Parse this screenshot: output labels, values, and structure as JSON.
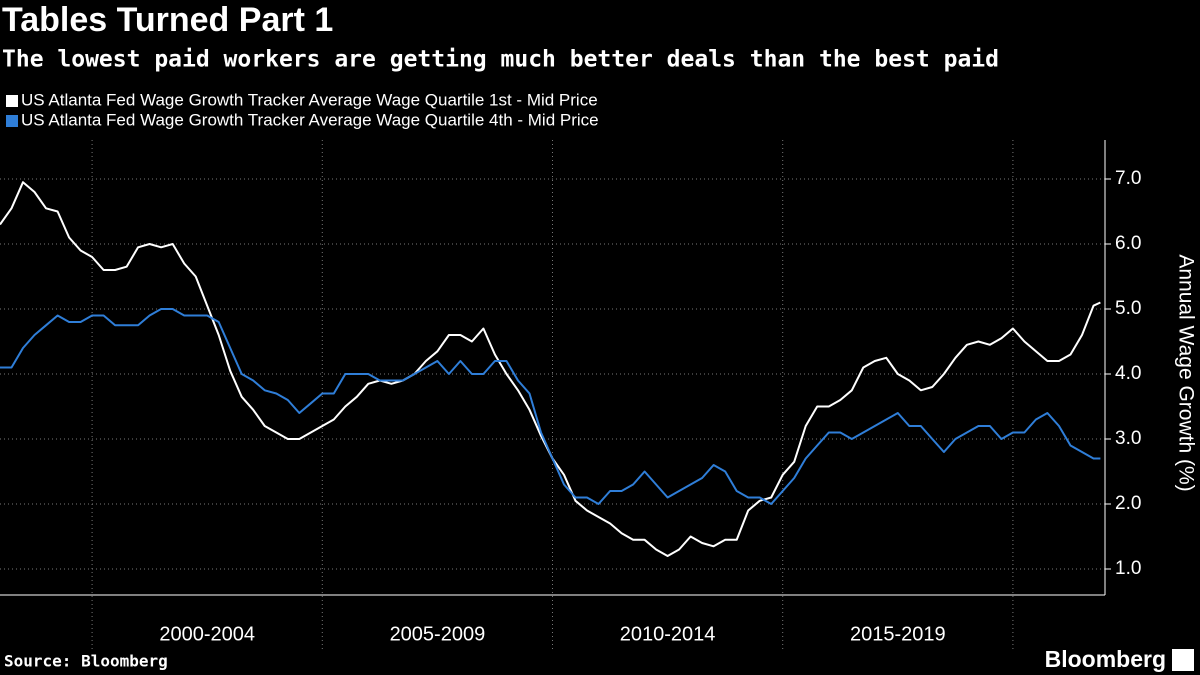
{
  "chart_data": {
    "type": "line",
    "title": "Tables Turned Part 1",
    "subtitle": "The lowest paid workers are getting much better deals than the best paid",
    "y_axis_label": "Annual Wage Growth (%)",
    "source": "Source: Bloomberg",
    "brand": "Bloomberg",
    "x": [
      1998.0,
      1998.25,
      1998.5,
      1998.75,
      1999.0,
      1999.25,
      1999.5,
      1999.75,
      2000.0,
      2000.25,
      2000.5,
      2000.75,
      2001.0,
      2001.25,
      2001.5,
      2001.75,
      2002.0,
      2002.25,
      2002.5,
      2002.75,
      2003.0,
      2003.25,
      2003.5,
      2003.75,
      2004.0,
      2004.25,
      2004.5,
      2004.75,
      2005.0,
      2005.25,
      2005.5,
      2005.75,
      2006.0,
      2006.25,
      2006.5,
      2006.75,
      2007.0,
      2007.25,
      2007.5,
      2007.75,
      2008.0,
      2008.25,
      2008.5,
      2008.75,
      2009.0,
      2009.25,
      2009.5,
      2009.75,
      2010.0,
      2010.25,
      2010.5,
      2010.75,
      2011.0,
      2011.25,
      2011.5,
      2011.75,
      2012.0,
      2012.25,
      2012.5,
      2012.75,
      2013.0,
      2013.25,
      2013.5,
      2013.75,
      2014.0,
      2014.25,
      2014.5,
      2014.75,
      2015.0,
      2015.25,
      2015.5,
      2015.75,
      2016.0,
      2016.25,
      2016.5,
      2016.75,
      2017.0,
      2017.25,
      2017.5,
      2017.75,
      2018.0,
      2018.25,
      2018.5,
      2018.75,
      2019.0,
      2019.25,
      2019.5,
      2019.75,
      2020.0,
      2020.25,
      2020.5,
      2020.75,
      2021.0,
      2021.25,
      2021.5,
      2021.75,
      2021.9
    ],
    "series": [
      {
        "name": "US Atlanta Fed Wage Growth Tracker Average Wage Quartile 1st - Mid Price",
        "color": "#ffffff",
        "values": [
          6.3,
          6.55,
          6.95,
          6.8,
          6.55,
          6.5,
          6.1,
          5.9,
          5.8,
          5.6,
          5.6,
          5.65,
          5.95,
          6.0,
          5.95,
          6.0,
          5.7,
          5.5,
          5.05,
          4.6,
          4.05,
          3.65,
          3.45,
          3.2,
          3.1,
          3.0,
          3.0,
          3.1,
          3.2,
          3.3,
          3.5,
          3.65,
          3.85,
          3.9,
          3.85,
          3.9,
          4.0,
          4.2,
          4.35,
          4.6,
          4.6,
          4.5,
          4.7,
          4.3,
          4.0,
          3.75,
          3.45,
          3.05,
          2.7,
          2.45,
          2.05,
          1.9,
          1.8,
          1.7,
          1.55,
          1.45,
          1.45,
          1.3,
          1.2,
          1.3,
          1.5,
          1.4,
          1.35,
          1.45,
          1.45,
          1.9,
          2.05,
          2.1,
          2.45,
          2.65,
          3.2,
          3.5,
          3.5,
          3.6,
          3.75,
          4.1,
          4.2,
          4.25,
          4.0,
          3.9,
          3.75,
          3.8,
          4.0,
          4.25,
          4.45,
          4.5,
          4.45,
          4.55,
          4.7,
          4.5,
          4.35,
          4.2,
          4.2,
          4.3,
          4.6,
          5.05,
          5.1
        ]
      },
      {
        "name": "US Atlanta Fed Wage Growth Tracker Average Wage Quartile 4th - Mid Price",
        "color": "#2f7ed8",
        "values": [
          4.1,
          4.1,
          4.4,
          4.6,
          4.75,
          4.9,
          4.8,
          4.8,
          4.9,
          4.9,
          4.75,
          4.75,
          4.75,
          4.9,
          5.0,
          5.0,
          4.9,
          4.9,
          4.9,
          4.8,
          4.4,
          4.0,
          3.9,
          3.75,
          3.7,
          3.6,
          3.4,
          3.55,
          3.7,
          3.7,
          4.0,
          4.0,
          4.0,
          3.9,
          3.9,
          3.9,
          4.0,
          4.1,
          4.2,
          4.0,
          4.2,
          4.0,
          4.0,
          4.2,
          4.2,
          3.9,
          3.7,
          3.1,
          2.7,
          2.3,
          2.1,
          2.1,
          2.0,
          2.2,
          2.2,
          2.3,
          2.5,
          2.3,
          2.1,
          2.2,
          2.3,
          2.4,
          2.6,
          2.5,
          2.2,
          2.1,
          2.1,
          2.0,
          2.2,
          2.4,
          2.7,
          2.9,
          3.1,
          3.1,
          3.0,
          3.1,
          3.2,
          3.3,
          3.4,
          3.2,
          3.2,
          3.0,
          2.8,
          3.0,
          3.1,
          3.2,
          3.2,
          3.0,
          3.1,
          3.1,
          3.3,
          3.4,
          3.2,
          2.9,
          2.8,
          2.7,
          2.7
        ]
      }
    ],
    "xlim": [
      1998,
      2022
    ],
    "xticks": [
      2000,
      2005,
      2010,
      2015,
      2020
    ],
    "x_periods": [
      {
        "label": "2000-2004",
        "start": 2000,
        "end": 2005
      },
      {
        "label": "2005-2009",
        "start": 2005,
        "end": 2010
      },
      {
        "label": "2010-2014",
        "start": 2010,
        "end": 2015
      },
      {
        "label": "2015-2019",
        "start": 2015,
        "end": 2020
      }
    ],
    "ylim": [
      0.6,
      7.6
    ],
    "yticks": [
      {
        "value": 1,
        "label": "1.0"
      },
      {
        "value": 2,
        "label": "2.0"
      },
      {
        "value": 3,
        "label": "3.0"
      },
      {
        "value": 4,
        "label": "4.0"
      },
      {
        "value": 5,
        "label": "5.0"
      },
      {
        "value": 6,
        "label": "6.0"
      },
      {
        "value": 7,
        "label": "7.0"
      }
    ],
    "grid": true
  }
}
